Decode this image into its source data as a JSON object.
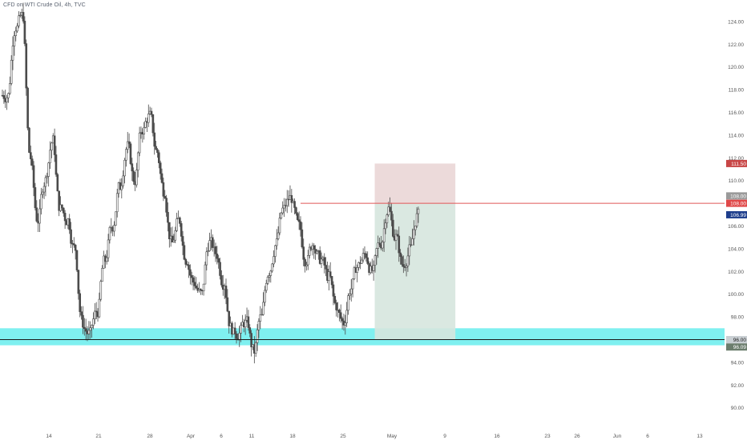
{
  "symbol": {
    "title": "CFD on WTI Crude Oil, 4h, TVC"
  },
  "colors": {
    "background": "#ffffff",
    "candle": "#4a4a4a",
    "support_zone": "#7ff0f0",
    "stop_zone": "#ead6d6",
    "target_zone": "#d6e5de",
    "entry_line": "#e05656",
    "stop_tag": "#c84646",
    "entry_tag": "#e04848",
    "current_tag": "#1e3e8c",
    "ref_tag": "#9a9a9a",
    "support_tag": "#6b7d6d",
    "axis_text": "#555555"
  },
  "axis": {
    "price_ticks": [
      "124.00",
      "122.00",
      "120.00",
      "118.00",
      "116.00",
      "114.00",
      "112.00",
      "110.00",
      "106.00",
      "104.00",
      "102.00",
      "100.00",
      "98.00",
      "94.00",
      "92.00",
      "90.00"
    ],
    "date_ticks": [
      "14",
      "21",
      "28",
      "Apr",
      "6",
      "11",
      "18",
      "25",
      "May",
      "9",
      "16",
      "23",
      "26",
      "Jun",
      "6",
      "13"
    ]
  },
  "price_tags": {
    "stop": "111.50",
    "entry_ref": "108.00",
    "entry": "108.00",
    "current": "106.99",
    "support_ref": "96.00",
    "support": "96.09"
  },
  "chart_data": {
    "type": "candlestick",
    "title": "CFD on WTI Crude Oil, 4h, TVC",
    "xlabel": "",
    "ylabel": "",
    "ylim": [
      89,
      126
    ],
    "x_range": [
      "Mar 8",
      "Jun 16"
    ],
    "grid": false,
    "close_path": [
      {
        "x": "Mar 8",
        "y": 117.5
      },
      {
        "x": "Mar 8",
        "y": 123.5
      },
      {
        "x": "Mar 9",
        "y": 124.5
      },
      {
        "x": "Mar 9",
        "y": 112.0
      },
      {
        "x": "Mar 10",
        "y": 106.5
      },
      {
        "x": "Mar 11",
        "y": 110.0
      },
      {
        "x": "Mar 11",
        "y": 113.5
      },
      {
        "x": "Mar 12",
        "y": 107.5
      },
      {
        "x": "Mar 13",
        "y": 106.5
      },
      {
        "x": "Mar 14",
        "y": 104.0
      },
      {
        "x": "Mar 15",
        "y": 97.5
      },
      {
        "x": "Mar 16",
        "y": 96.5
      },
      {
        "x": "Mar 17",
        "y": 98.5
      },
      {
        "x": "Mar 18",
        "y": 103.0
      },
      {
        "x": "Mar 19",
        "y": 106.0
      },
      {
        "x": "Mar 20",
        "y": 109.5
      },
      {
        "x": "Mar 21",
        "y": 113.0
      },
      {
        "x": "Mar 22",
        "y": 110.0
      },
      {
        "x": "Mar 23",
        "y": 114.5
      },
      {
        "x": "Mar 24",
        "y": 115.7
      },
      {
        "x": "Mar 25",
        "y": 112.5
      },
      {
        "x": "Mar 26",
        "y": 109.0
      },
      {
        "x": "Mar 27",
        "y": 104.5
      },
      {
        "x": "Mar 28",
        "y": 106.5
      },
      {
        "x": "Mar 29",
        "y": 103.0
      },
      {
        "x": "Mar 30",
        "y": 101.0
      },
      {
        "x": "Mar 31",
        "y": 100.0
      },
      {
        "x": "Apr 1",
        "y": 104.5
      },
      {
        "x": "Apr 2",
        "y": 103.5
      },
      {
        "x": "Apr 3",
        "y": 101.0
      },
      {
        "x": "Apr 4",
        "y": 97.0
      },
      {
        "x": "Apr 5",
        "y": 96.5
      },
      {
        "x": "Apr 6",
        "y": 97.5
      },
      {
        "x": "Apr 7",
        "y": 95.0
      },
      {
        "x": "Apr 8",
        "y": 98.0
      },
      {
        "x": "Apr 9",
        "y": 102.0
      },
      {
        "x": "Apr 10",
        "y": 104.5
      },
      {
        "x": "Apr 11",
        "y": 107.5
      },
      {
        "x": "Apr 12",
        "y": 108.5
      },
      {
        "x": "Apr 13",
        "y": 106.0
      },
      {
        "x": "Apr 14",
        "y": 103.0
      },
      {
        "x": "Apr 15",
        "y": 104.5
      },
      {
        "x": "Apr 16",
        "y": 103.0
      },
      {
        "x": "Apr 17",
        "y": 101.5
      },
      {
        "x": "Apr 18",
        "y": 99.0
      },
      {
        "x": "Apr 19",
        "y": 97.5
      },
      {
        "x": "Apr 20",
        "y": 100.5
      },
      {
        "x": "Apr 21",
        "y": 102.5
      },
      {
        "x": "Apr 22",
        "y": 103.5
      },
      {
        "x": "Apr 23",
        "y": 102.0
      },
      {
        "x": "Apr 24",
        "y": 104.5
      },
      {
        "x": "Apr 25",
        "y": 107.5
      },
      {
        "x": "Apr 26",
        "y": 105.0
      },
      {
        "x": "Apr 27",
        "y": 102.5
      },
      {
        "x": "Apr 28",
        "y": 104.0
      },
      {
        "x": "Apr 29",
        "y": 106.99
      }
    ],
    "support_zone": {
      "low": 95.5,
      "high": 97.0
    },
    "support_line": 96.0,
    "position": {
      "entry": 108.0,
      "stop": 111.5,
      "target": 96.0,
      "start": "Apr 29",
      "end": "May 10"
    }
  }
}
